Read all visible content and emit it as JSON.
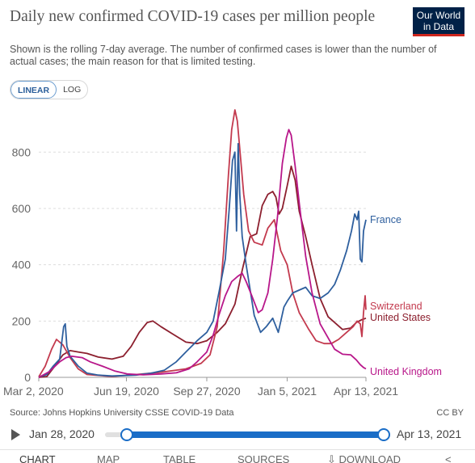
{
  "header": {
    "title": "Daily new confirmed COVID-19 cases per million people",
    "subtitle": "Shown is the rolling 7-day average. The number of confirmed cases is lower than the number of actual cases; the main reason for that is limited testing.",
    "logo_line1": "Our World",
    "logo_line2": "in Data"
  },
  "controls": {
    "linear_label": "LINEAR",
    "log_label": "LOG",
    "selected": "LINEAR"
  },
  "footer": {
    "source": "Source: Johns Hopkins University CSSE COVID-19 Data",
    "license": "CC BY"
  },
  "timeline": {
    "start_label": "Jan 28, 2020",
    "end_label": "Apr 13, 2021"
  },
  "tabs": [
    "CHART",
    "MAP",
    "TABLE",
    "SOURCES",
    "DOWNLOAD",
    ""
  ],
  "tabs_active": "CHART",
  "colors": {
    "France": "#2e5f9e",
    "Switzerland": "#c33a4e",
    "United States": "#8c1f2e",
    "United Kingdom": "#b8178a",
    "grid": "#dddddd",
    "axis_text": "#666666"
  },
  "chart_data": {
    "type": "line",
    "title": "Daily new confirmed COVID-19 cases per million people",
    "xlabel": "",
    "ylabel": "",
    "ylim": [
      0,
      950
    ],
    "yticks": [
      0,
      200,
      400,
      600,
      800
    ],
    "xlim": [
      "2020-03-02",
      "2021-04-13"
    ],
    "xticks": [
      {
        "date": "2020-03-02",
        "label": "Mar 2, 2020"
      },
      {
        "date": "2020-06-19",
        "label": "Jun 19, 2020"
      },
      {
        "date": "2020-09-27",
        "label": "Sep 27, 2020"
      },
      {
        "date": "2021-01-05",
        "label": "Jan 5, 2021"
      },
      {
        "date": "2021-04-13",
        "label": "Apr 13, 2021"
      }
    ],
    "grid": true,
    "legend": "line-end labels",
    "series": [
      {
        "name": "France",
        "points": [
          [
            "2020-03-02",
            1
          ],
          [
            "2020-03-12",
            10
          ],
          [
            "2020-03-20",
            40
          ],
          [
            "2020-03-28",
            65
          ],
          [
            "2020-04-02",
            180
          ],
          [
            "2020-04-04",
            190
          ],
          [
            "2020-04-06",
            110
          ],
          [
            "2020-04-10",
            75
          ],
          [
            "2020-04-20",
            40
          ],
          [
            "2020-05-01",
            15
          ],
          [
            "2020-05-15",
            8
          ],
          [
            "2020-06-01",
            5
          ],
          [
            "2020-07-01",
            8
          ],
          [
            "2020-07-20",
            15
          ],
          [
            "2020-08-05",
            25
          ],
          [
            "2020-08-20",
            55
          ],
          [
            "2020-09-01",
            90
          ],
          [
            "2020-09-15",
            130
          ],
          [
            "2020-09-27",
            160
          ],
          [
            "2020-10-05",
            200
          ],
          [
            "2020-10-12",
            300
          ],
          [
            "2020-10-20",
            420
          ],
          [
            "2020-10-25",
            600
          ],
          [
            "2020-10-29",
            770
          ],
          [
            "2020-11-01",
            800
          ],
          [
            "2020-11-03",
            520
          ],
          [
            "2020-11-05",
            830
          ],
          [
            "2020-11-07",
            650
          ],
          [
            "2020-11-10",
            500
          ],
          [
            "2020-11-15",
            400
          ],
          [
            "2020-11-25",
            220
          ],
          [
            "2020-12-03",
            160
          ],
          [
            "2020-12-10",
            180
          ],
          [
            "2020-12-18",
            210
          ],
          [
            "2020-12-25",
            160
          ],
          [
            "2021-01-01",
            250
          ],
          [
            "2021-01-05",
            270
          ],
          [
            "2021-01-12",
            300
          ],
          [
            "2021-01-20",
            310
          ],
          [
            "2021-01-28",
            320
          ],
          [
            "2021-02-05",
            290
          ],
          [
            "2021-02-15",
            280
          ],
          [
            "2021-02-25",
            300
          ],
          [
            "2021-03-05",
            330
          ],
          [
            "2021-03-12",
            380
          ],
          [
            "2021-03-20",
            450
          ],
          [
            "2021-03-26",
            520
          ],
          [
            "2021-03-30",
            580
          ],
          [
            "2021-04-02",
            560
          ],
          [
            "2021-04-04",
            590
          ],
          [
            "2021-04-06",
            420
          ],
          [
            "2021-04-08",
            410
          ],
          [
            "2021-04-10",
            520
          ],
          [
            "2021-04-13",
            560
          ]
        ]
      },
      {
        "name": "Switzerland",
        "points": [
          [
            "2020-03-02",
            2
          ],
          [
            "2020-03-10",
            40
          ],
          [
            "2020-03-18",
            100
          ],
          [
            "2020-03-24",
            135
          ],
          [
            "2020-04-01",
            115
          ],
          [
            "2020-04-10",
            70
          ],
          [
            "2020-04-20",
            30
          ],
          [
            "2020-05-01",
            10
          ],
          [
            "2020-06-01",
            3
          ],
          [
            "2020-07-01",
            10
          ],
          [
            "2020-08-01",
            18
          ],
          [
            "2020-09-01",
            30
          ],
          [
            "2020-09-20",
            50
          ],
          [
            "2020-10-01",
            80
          ],
          [
            "2020-10-10",
            180
          ],
          [
            "2020-10-18",
            450
          ],
          [
            "2020-10-24",
            720
          ],
          [
            "2020-10-28",
            880
          ],
          [
            "2020-11-01",
            950
          ],
          [
            "2020-11-04",
            910
          ],
          [
            "2020-11-08",
            780
          ],
          [
            "2020-11-12",
            650
          ],
          [
            "2020-11-18",
            520
          ],
          [
            "2020-11-25",
            480
          ],
          [
            "2020-12-05",
            470
          ],
          [
            "2020-12-12",
            530
          ],
          [
            "2020-12-20",
            560
          ],
          [
            "2020-12-28",
            450
          ],
          [
            "2021-01-05",
            400
          ],
          [
            "2021-01-12",
            300
          ],
          [
            "2021-01-20",
            230
          ],
          [
            "2021-02-01",
            170
          ],
          [
            "2021-02-10",
            130
          ],
          [
            "2021-02-20",
            120
          ],
          [
            "2021-03-01",
            120
          ],
          [
            "2021-03-10",
            135
          ],
          [
            "2021-03-20",
            160
          ],
          [
            "2021-03-28",
            180
          ],
          [
            "2021-04-02",
            200
          ],
          [
            "2021-04-06",
            190
          ],
          [
            "2021-04-08",
            145
          ],
          [
            "2021-04-10",
            230
          ],
          [
            "2021-04-12",
            290
          ],
          [
            "2021-04-13",
            240
          ]
        ]
      },
      {
        "name": "United States",
        "points": [
          [
            "2020-03-02",
            0
          ],
          [
            "2020-03-12",
            3
          ],
          [
            "2020-03-22",
            40
          ],
          [
            "2020-04-01",
            80
          ],
          [
            "2020-04-10",
            95
          ],
          [
            "2020-04-20",
            90
          ],
          [
            "2020-05-01",
            85
          ],
          [
            "2020-05-15",
            72
          ],
          [
            "2020-06-01",
            65
          ],
          [
            "2020-06-15",
            75
          ],
          [
            "2020-06-25",
            110
          ],
          [
            "2020-07-05",
            160
          ],
          [
            "2020-07-15",
            195
          ],
          [
            "2020-07-22",
            200
          ],
          [
            "2020-08-01",
            180
          ],
          [
            "2020-08-15",
            155
          ],
          [
            "2020-09-01",
            125
          ],
          [
            "2020-09-15",
            120
          ],
          [
            "2020-09-27",
            130
          ],
          [
            "2020-10-10",
            160
          ],
          [
            "2020-10-20",
            190
          ],
          [
            "2020-11-01",
            260
          ],
          [
            "2020-11-10",
            380
          ],
          [
            "2020-11-20",
            500
          ],
          [
            "2020-11-28",
            510
          ],
          [
            "2020-12-05",
            610
          ],
          [
            "2020-12-12",
            650
          ],
          [
            "2020-12-18",
            660
          ],
          [
            "2020-12-22",
            640
          ],
          [
            "2020-12-26",
            580
          ],
          [
            "2020-12-30",
            600
          ],
          [
            "2021-01-05",
            680
          ],
          [
            "2021-01-10",
            750
          ],
          [
            "2021-01-15",
            700
          ],
          [
            "2021-01-20",
            590
          ],
          [
            "2021-01-28",
            500
          ],
          [
            "2021-02-05",
            400
          ],
          [
            "2021-02-15",
            280
          ],
          [
            "2021-02-25",
            215
          ],
          [
            "2021-03-05",
            195
          ],
          [
            "2021-03-15",
            170
          ],
          [
            "2021-03-25",
            175
          ],
          [
            "2021-04-01",
            195
          ],
          [
            "2021-04-08",
            205
          ],
          [
            "2021-04-13",
            210
          ]
        ]
      },
      {
        "name": "United Kingdom",
        "points": [
          [
            "2020-03-02",
            0
          ],
          [
            "2020-03-15",
            20
          ],
          [
            "2020-03-28",
            55
          ],
          [
            "2020-04-05",
            70
          ],
          [
            "2020-04-12",
            75
          ],
          [
            "2020-04-25",
            70
          ],
          [
            "2020-05-05",
            55
          ],
          [
            "2020-05-20",
            40
          ],
          [
            "2020-06-05",
            22
          ],
          [
            "2020-06-20",
            12
          ],
          [
            "2020-07-10",
            9
          ],
          [
            "2020-08-01",
            12
          ],
          [
            "2020-08-20",
            16
          ],
          [
            "2020-09-05",
            30
          ],
          [
            "2020-09-15",
            55
          ],
          [
            "2020-09-27",
            90
          ],
          [
            "2020-10-05",
            150
          ],
          [
            "2020-10-12",
            220
          ],
          [
            "2020-10-20",
            290
          ],
          [
            "2020-10-28",
            340
          ],
          [
            "2020-11-05",
            360
          ],
          [
            "2020-11-10",
            370
          ],
          [
            "2020-11-15",
            340
          ],
          [
            "2020-11-22",
            290
          ],
          [
            "2020-11-30",
            230
          ],
          [
            "2020-12-05",
            240
          ],
          [
            "2020-12-12",
            300
          ],
          [
            "2020-12-18",
            420
          ],
          [
            "2020-12-24",
            570
          ],
          [
            "2020-12-30",
            760
          ],
          [
            "2021-01-04",
            850
          ],
          [
            "2021-01-07",
            880
          ],
          [
            "2021-01-10",
            860
          ],
          [
            "2021-01-15",
            750
          ],
          [
            "2021-01-20",
            620
          ],
          [
            "2021-01-28",
            430
          ],
          [
            "2021-02-05",
            300
          ],
          [
            "2021-02-15",
            190
          ],
          [
            "2021-02-25",
            140
          ],
          [
            "2021-03-05",
            100
          ],
          [
            "2021-03-15",
            82
          ],
          [
            "2021-03-25",
            80
          ],
          [
            "2021-04-01",
            62
          ],
          [
            "2021-04-06",
            45
          ],
          [
            "2021-04-10",
            35
          ],
          [
            "2021-04-13",
            30
          ]
        ]
      }
    ],
    "end_labels": [
      {
        "series": "France",
        "text": "France",
        "value": 560
      },
      {
        "series": "Switzerland",
        "text": "Switzerland",
        "value": 252
      },
      {
        "series": "United States",
        "text": "United States",
        "value": 212
      },
      {
        "series": "United Kingdom",
        "text": "United Kingdom",
        "value": 20
      }
    ]
  }
}
